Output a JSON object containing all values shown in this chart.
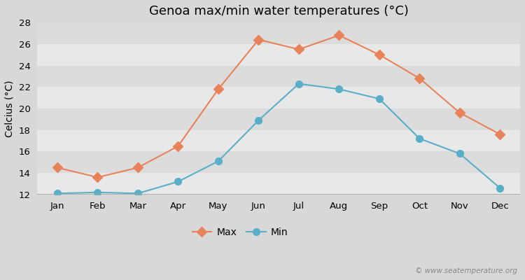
{
  "title": "Genoa max/min water temperatures (°C)",
  "ylabel": "Celcius (°C)",
  "months": [
    "Jan",
    "Feb",
    "Mar",
    "Apr",
    "May",
    "Jun",
    "Jul",
    "Aug",
    "Sep",
    "Oct",
    "Nov",
    "Dec"
  ],
  "max_temps": [
    14.5,
    13.6,
    14.5,
    16.5,
    21.8,
    26.4,
    25.5,
    26.8,
    25.0,
    22.8,
    19.6,
    17.6
  ],
  "min_temps": [
    12.1,
    12.2,
    12.1,
    13.2,
    15.1,
    18.9,
    22.3,
    21.8,
    20.9,
    17.2,
    15.8,
    12.6
  ],
  "max_color": "#e8825a",
  "min_color": "#5aafc8",
  "fig_bg_color": "#d8d8d8",
  "band_colors": [
    "#e8e8e8",
    "#dcdcdc"
  ],
  "bottom_line_color": "#aaaaaa",
  "ylim": [
    12,
    28
  ],
  "yticks": [
    12,
    14,
    16,
    18,
    20,
    22,
    24,
    26,
    28
  ],
  "title_fontsize": 13,
  "axis_label_fontsize": 10,
  "tick_fontsize": 9.5,
  "legend_fontsize": 10,
  "watermark": "© www.seatemperature.org",
  "legend_max": "Max",
  "legend_min": "Min"
}
